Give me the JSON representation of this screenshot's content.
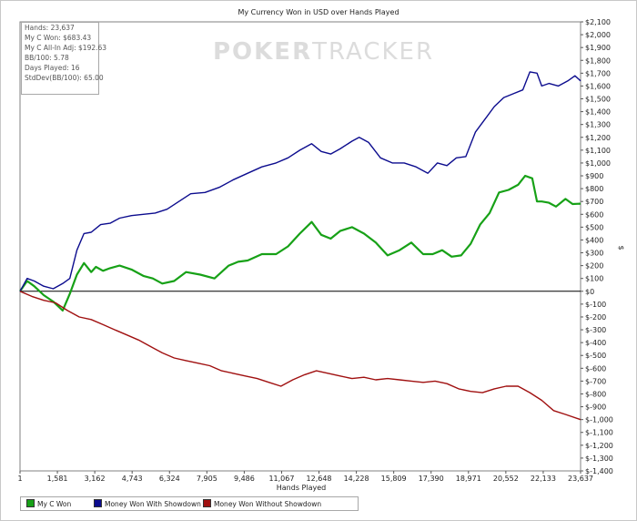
{
  "logo": {
    "text_a": "POKER",
    "text_b": "TRACKER"
  },
  "stats": [
    "Hands: 23,637",
    "My C Won: $683.43",
    "My C All-In Adj: $192.63",
    "BB/100: 5.78",
    "Days Played: 16",
    "StdDev(BB/100): 65.00"
  ],
  "legend": [
    {
      "label": "My C Won",
      "color": "#17a117"
    },
    {
      "label": "Money Won With Showdown",
      "color": "#0c0c8e"
    },
    {
      "label": "Money Won Without Showdown",
      "color": "#a01010"
    }
  ],
  "chart_data": {
    "type": "line",
    "title": "My Currency Won in USD over Hands Played",
    "xlabel": "Hands Played",
    "ylabel": "$",
    "xlim": [
      1,
      23637
    ],
    "ylim": [
      -1400,
      2100
    ],
    "x_ticks": [
      "1",
      "1,581",
      "3,162",
      "4,743",
      "6,324",
      "7,905",
      "9,486",
      "11,067",
      "12,648",
      "14,228",
      "15,809",
      "17,390",
      "18,971",
      "20,552",
      "22,133",
      "23,637"
    ],
    "y_ticks": [
      "$2,100",
      "$2,000",
      "$1,900",
      "$1,800",
      "$1,700",
      "$1,600",
      "$1,500",
      "$1,400",
      "$1,300",
      "$1,200",
      "$1,100",
      "$1,000",
      "$900",
      "$800",
      "$700",
      "$600",
      "$500",
      "$400",
      "$300",
      "$200",
      "$100",
      "$0",
      "$-100",
      "$-200",
      "$-300",
      "$-400",
      "$-500",
      "$-600",
      "$-700",
      "$-800",
      "$-900",
      "$-1,000",
      "$-1,100",
      "$-1,200",
      "$-1,300",
      "$-1,400"
    ],
    "y_tick_values": [
      2100,
      2000,
      1900,
      1800,
      1700,
      1600,
      1500,
      1400,
      1300,
      1200,
      1100,
      1000,
      900,
      800,
      700,
      600,
      500,
      400,
      300,
      200,
      100,
      0,
      -100,
      -200,
      -300,
      -400,
      -500,
      -600,
      -700,
      -800,
      -900,
      -1000,
      -1100,
      -1200,
      -1300,
      -1400
    ],
    "grid": false,
    "legend_position": "bottom-left",
    "series": [
      {
        "name": "My C Won",
        "color": "#17a117",
        "x": [
          1,
          300,
          600,
          1000,
          1400,
          1800,
          2100,
          2400,
          2700,
          3000,
          3200,
          3500,
          3800,
          4200,
          4700,
          5200,
          5600,
          6000,
          6500,
          7000,
          7600,
          8200,
          8800,
          9200,
          9600,
          10200,
          10800,
          11300,
          11800,
          12300,
          12700,
          13100,
          13500,
          14000,
          14500,
          15000,
          15500,
          16000,
          16500,
          17000,
          17400,
          17800,
          18200,
          18600,
          19000,
          19400,
          19800,
          20200,
          20600,
          21000,
          21300,
          21600,
          21800,
          22000,
          22300,
          22600,
          23000,
          23300,
          23637
        ],
        "y": [
          0,
          80,
          40,
          -30,
          -80,
          -150,
          -20,
          130,
          220,
          150,
          190,
          160,
          180,
          200,
          170,
          120,
          100,
          60,
          80,
          150,
          130,
          100,
          200,
          230,
          240,
          290,
          290,
          350,
          450,
          540,
          440,
          410,
          470,
          500,
          450,
          380,
          280,
          320,
          380,
          290,
          290,
          320,
          270,
          280,
          370,
          520,
          610,
          770,
          790,
          830,
          900,
          880,
          700,
          700,
          690,
          660,
          720,
          680,
          683
        ]
      },
      {
        "name": "Money Won With Showdown",
        "color": "#0c0c8e",
        "x": [
          1,
          300,
          600,
          1000,
          1400,
          1800,
          2100,
          2400,
          2700,
          3000,
          3400,
          3800,
          4200,
          4700,
          5200,
          5700,
          6200,
          6700,
          7200,
          7800,
          8400,
          9000,
          9600,
          10200,
          10800,
          11300,
          11800,
          12300,
          12700,
          13100,
          13500,
          14000,
          14300,
          14700,
          15200,
          15700,
          16200,
          16700,
          17200,
          17600,
          18000,
          18400,
          18800,
          19200,
          19600,
          20000,
          20400,
          20800,
          21200,
          21500,
          21800,
          22000,
          22300,
          22700,
          23100,
          23400,
          23637
        ],
        "y": [
          0,
          100,
          80,
          40,
          20,
          60,
          100,
          320,
          450,
          460,
          520,
          530,
          570,
          590,
          600,
          610,
          640,
          700,
          760,
          770,
          810,
          870,
          920,
          970,
          1000,
          1040,
          1100,
          1150,
          1090,
          1070,
          1110,
          1170,
          1200,
          1160,
          1040,
          1000,
          1000,
          970,
          920,
          1000,
          980,
          1040,
          1050,
          1240,
          1340,
          1440,
          1510,
          1540,
          1570,
          1710,
          1700,
          1600,
          1620,
          1600,
          1640,
          1680,
          1640
        ]
      },
      {
        "name": "Money Won Without Showdown",
        "color": "#a01010",
        "x": [
          1,
          500,
          1000,
          1500,
          2000,
          2500,
          3000,
          3500,
          4000,
          4500,
          5000,
          5500,
          6000,
          6500,
          7000,
          7500,
          8000,
          8500,
          9000,
          9500,
          10000,
          10500,
          11000,
          11500,
          12000,
          12500,
          13000,
          13500,
          14000,
          14500,
          15000,
          15500,
          16000,
          16500,
          17000,
          17500,
          18000,
          18500,
          19000,
          19500,
          20000,
          20500,
          21000,
          21500,
          22000,
          22500,
          23000,
          23637
        ],
        "y": [
          0,
          -40,
          -70,
          -90,
          -150,
          -200,
          -220,
          -260,
          -300,
          -340,
          -380,
          -430,
          -480,
          -520,
          -540,
          -560,
          -580,
          -620,
          -640,
          -660,
          -680,
          -710,
          -740,
          -690,
          -650,
          -620,
          -640,
          -660,
          -680,
          -670,
          -690,
          -680,
          -690,
          -700,
          -710,
          -700,
          -720,
          -760,
          -780,
          -790,
          -760,
          -740,
          -740,
          -790,
          -850,
          -930,
          -960,
          -1000
        ]
      }
    ]
  }
}
